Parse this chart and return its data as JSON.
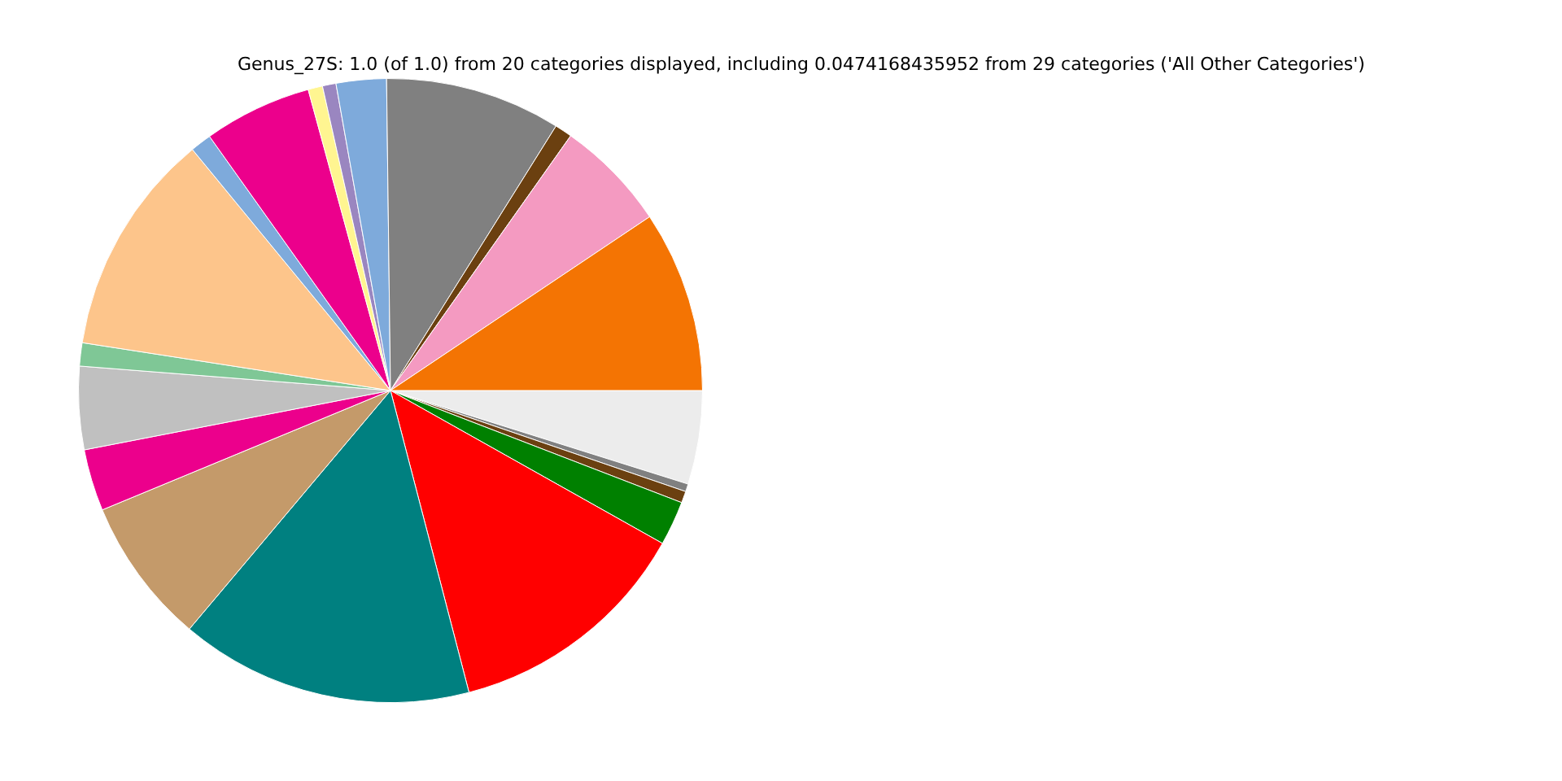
{
  "chart_data": {
    "type": "pie",
    "title": "Genus_27S: 1.0 (of 1.0) from 20 categories displayed, including 0.0474168435952 from 29 categories ('All Other Categories')",
    "categories": [
      null,
      null,
      null,
      null,
      null,
      null,
      null,
      null,
      null,
      null,
      null,
      null,
      null,
      null,
      null,
      null,
      null,
      null,
      null,
      null
    ],
    "values": [
      9.4,
      5.8,
      0.9,
      9.1,
      2.6,
      0.7,
      0.75,
      5.6,
      1.1,
      11.6,
      1.2,
      4.3,
      3.2,
      7.6,
      15.2,
      12.8,
      2.3,
      0.6,
      0.4,
      4.85
    ],
    "colors": [
      "#f47403",
      "#f49ac1",
      "#6b4010",
      "#808080",
      "#7eaadb",
      "#9a86c0",
      "#fff591",
      "#ec008c",
      "#7eaadb",
      "#fdc58b",
      "#7fc796",
      "#c0c0c0",
      "#ec008c",
      "#c49a6a",
      "#008080",
      "#ff0000",
      "#008000",
      "#6b4010",
      "#808080",
      "#ececec"
    ],
    "legend": false
  }
}
